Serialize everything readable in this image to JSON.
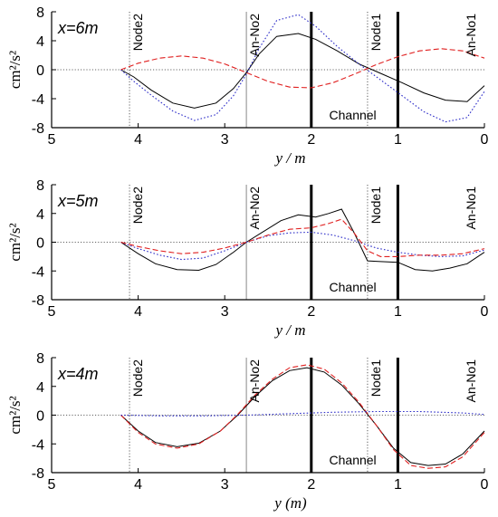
{
  "chart_data": [
    {
      "type": "line",
      "panel_label": "x=6m",
      "ylabel": "cm²/s²",
      "xlabel": "y / m",
      "xlim": [
        5,
        0
      ],
      "ylim": [
        -8,
        8
      ],
      "xticks": [
        5,
        4,
        3,
        2,
        1,
        0
      ],
      "yticks": [
        -8,
        -4,
        0,
        4,
        8
      ],
      "annotations": [
        {
          "text": "Node2",
          "x": 4.1,
          "style": "dotted"
        },
        {
          "text": "An-No2",
          "x": 2.75,
          "style": "thin"
        },
        {
          "text": "Node1",
          "x": 1.35,
          "style": "dotted"
        },
        {
          "text": "An-No1",
          "x": 0.0,
          "style": "none"
        },
        {
          "text": "Channel",
          "x": 1.5
        }
      ],
      "channel_walls": [
        2,
        1
      ],
      "series": [
        {
          "color": "#000000",
          "dash": "solid",
          "x": [
            4.2,
            4.05,
            3.85,
            3.6,
            3.35,
            3.1,
            2.9,
            2.75,
            2.6,
            2.4,
            2.15,
            1.95,
            1.7,
            1.45,
            1.2,
            0.95,
            0.7,
            0.45,
            0.2,
            0.0
          ],
          "y": [
            0.0,
            -1.0,
            -2.8,
            -4.6,
            -5.3,
            -4.6,
            -2.6,
            -0.4,
            2.2,
            4.6,
            5.0,
            4.2,
            2.6,
            0.8,
            -0.5,
            -1.8,
            -3.2,
            -4.2,
            -4.4,
            -2.2
          ]
        },
        {
          "color": "#2c2cc8",
          "dash": "dotted",
          "x": [
            4.2,
            4.05,
            3.85,
            3.6,
            3.35,
            3.1,
            2.9,
            2.75,
            2.6,
            2.4,
            2.15,
            1.95,
            1.7,
            1.45,
            1.2,
            0.95,
            0.7,
            0.45,
            0.2,
            0.0
          ],
          "y": [
            0.0,
            -1.6,
            -3.5,
            -5.7,
            -7.0,
            -6.2,
            -3.6,
            -0.6,
            3.0,
            6.8,
            7.6,
            6.0,
            3.2,
            0.8,
            -1.4,
            -3.6,
            -5.8,
            -7.2,
            -6.6,
            -3.0
          ]
        },
        {
          "color": "#e02020",
          "dash": "dashed",
          "x": [
            4.2,
            4.0,
            3.75,
            3.5,
            3.25,
            3.0,
            2.75,
            2.5,
            2.25,
            2.0,
            1.75,
            1.5,
            1.25,
            1.0,
            0.75,
            0.5,
            0.25,
            0.0
          ],
          "y": [
            0.0,
            0.9,
            1.6,
            1.9,
            1.6,
            0.8,
            -0.4,
            -1.6,
            -2.4,
            -2.5,
            -1.8,
            -0.6,
            0.7,
            1.8,
            2.6,
            2.9,
            2.6,
            1.6
          ]
        }
      ]
    },
    {
      "type": "line",
      "panel_label": "x=5m",
      "ylabel": "cm²/s²",
      "xlabel": "y / m",
      "xlim": [
        5,
        0
      ],
      "ylim": [
        -8,
        8
      ],
      "xticks": [
        5,
        4,
        3,
        2,
        1,
        0
      ],
      "yticks": [
        -8,
        -4,
        0,
        4,
        8
      ],
      "annotations": [
        {
          "text": "Node2",
          "x": 4.1,
          "style": "dotted"
        },
        {
          "text": "An-No2",
          "x": 2.75,
          "style": "thin"
        },
        {
          "text": "Node1",
          "x": 1.35,
          "style": "dotted"
        },
        {
          "text": "An-No1",
          "x": 0.0,
          "style": "none"
        },
        {
          "text": "Channel",
          "x": 1.5
        }
      ],
      "channel_walls": [
        2,
        1
      ],
      "series": [
        {
          "color": "#000000",
          "dash": "solid",
          "x": [
            4.2,
            4.0,
            3.8,
            3.55,
            3.3,
            3.1,
            2.9,
            2.75,
            2.55,
            2.35,
            2.15,
            1.95,
            1.8,
            1.65,
            1.5,
            1.35,
            1.2,
            1.0,
            0.8,
            0.6,
            0.4,
            0.2,
            0.0
          ],
          "y": [
            0.0,
            -1.6,
            -3.0,
            -3.8,
            -3.9,
            -3.1,
            -1.4,
            0.0,
            1.5,
            3.0,
            3.8,
            3.5,
            4.0,
            4.6,
            1.2,
            -2.6,
            -2.7,
            -2.8,
            -3.8,
            -4.0,
            -3.6,
            -3.0,
            -1.4
          ]
        },
        {
          "color": "#2c2cc8",
          "dash": "dotted",
          "x": [
            4.2,
            4.0,
            3.75,
            3.5,
            3.25,
            3.0,
            2.75,
            2.5,
            2.25,
            2.0,
            1.75,
            1.5,
            1.25,
            1.0,
            0.75,
            0.5,
            0.25,
            0.0
          ],
          "y": [
            0.0,
            -0.9,
            -1.8,
            -2.4,
            -2.2,
            -1.2,
            0.0,
            0.9,
            1.3,
            1.4,
            1.0,
            0.2,
            -0.8,
            -1.4,
            -1.8,
            -2.0,
            -1.9,
            -1.1
          ]
        },
        {
          "color": "#e02020",
          "dash": "dashed",
          "x": [
            4.2,
            4.0,
            3.75,
            3.5,
            3.25,
            3.0,
            2.75,
            2.5,
            2.25,
            2.0,
            1.8,
            1.65,
            1.5,
            1.35,
            1.2,
            1.0,
            0.75,
            0.5,
            0.25,
            0.0
          ],
          "y": [
            0.0,
            -0.6,
            -1.2,
            -1.6,
            -1.4,
            -0.8,
            0.0,
            1.0,
            1.8,
            2.0,
            2.6,
            3.2,
            1.2,
            -1.2,
            -2.0,
            -2.0,
            -1.8,
            -1.8,
            -1.6,
            -0.9
          ]
        }
      ]
    },
    {
      "type": "line",
      "panel_label": "x=4m",
      "ylabel": "cm²/s²",
      "xlabel": "y (m)",
      "xlim": [
        5,
        0
      ],
      "ylim": [
        -8,
        8
      ],
      "xticks": [
        5,
        4,
        3,
        2,
        1,
        0
      ],
      "yticks": [
        -8,
        -4,
        0,
        4,
        8
      ],
      "annotations": [
        {
          "text": "Node2",
          "x": 4.1,
          "style": "dotted"
        },
        {
          "text": "An-No2",
          "x": 2.75,
          "style": "thin"
        },
        {
          "text": "Node1",
          "x": 1.35,
          "style": "dotted"
        },
        {
          "text": "An-No1",
          "x": 0.0,
          "style": "none"
        },
        {
          "text": "Channel",
          "x": 1.5
        }
      ],
      "channel_walls": [
        2,
        1
      ],
      "series": [
        {
          "color": "#000000",
          "dash": "solid",
          "x": [
            4.2,
            4.0,
            3.8,
            3.55,
            3.3,
            3.05,
            2.85,
            2.65,
            2.45,
            2.25,
            2.05,
            1.85,
            1.65,
            1.45,
            1.25,
            1.05,
            0.85,
            0.65,
            0.45,
            0.25,
            0.0
          ],
          "y": [
            0.0,
            -2.2,
            -3.8,
            -4.4,
            -3.9,
            -2.2,
            0.0,
            2.6,
            4.8,
            6.2,
            6.6,
            6.0,
            4.2,
            1.6,
            -1.4,
            -4.6,
            -6.6,
            -7.0,
            -6.8,
            -5.4,
            -2.2
          ]
        },
        {
          "color": "#e02020",
          "dash": "dashed",
          "x": [
            4.2,
            4.0,
            3.8,
            3.55,
            3.3,
            3.05,
            2.85,
            2.65,
            2.45,
            2.25,
            2.05,
            1.85,
            1.65,
            1.45,
            1.25,
            1.05,
            0.85,
            0.65,
            0.45,
            0.25,
            0.0
          ],
          "y": [
            0.0,
            -2.4,
            -4.0,
            -4.6,
            -4.0,
            -2.2,
            0.1,
            2.8,
            5.0,
            6.6,
            7.0,
            6.4,
            4.5,
            1.8,
            -1.4,
            -4.8,
            -7.0,
            -7.4,
            -7.2,
            -5.8,
            -2.4
          ]
        },
        {
          "color": "#2c2cc8",
          "dash": "dotted",
          "x": [
            4.2,
            3.75,
            3.25,
            2.75,
            2.25,
            1.75,
            1.25,
            0.75,
            0.25,
            0.0
          ],
          "y": [
            0.0,
            -0.1,
            -0.1,
            0.0,
            0.2,
            0.4,
            0.5,
            0.5,
            0.3,
            0.1
          ]
        }
      ]
    }
  ]
}
